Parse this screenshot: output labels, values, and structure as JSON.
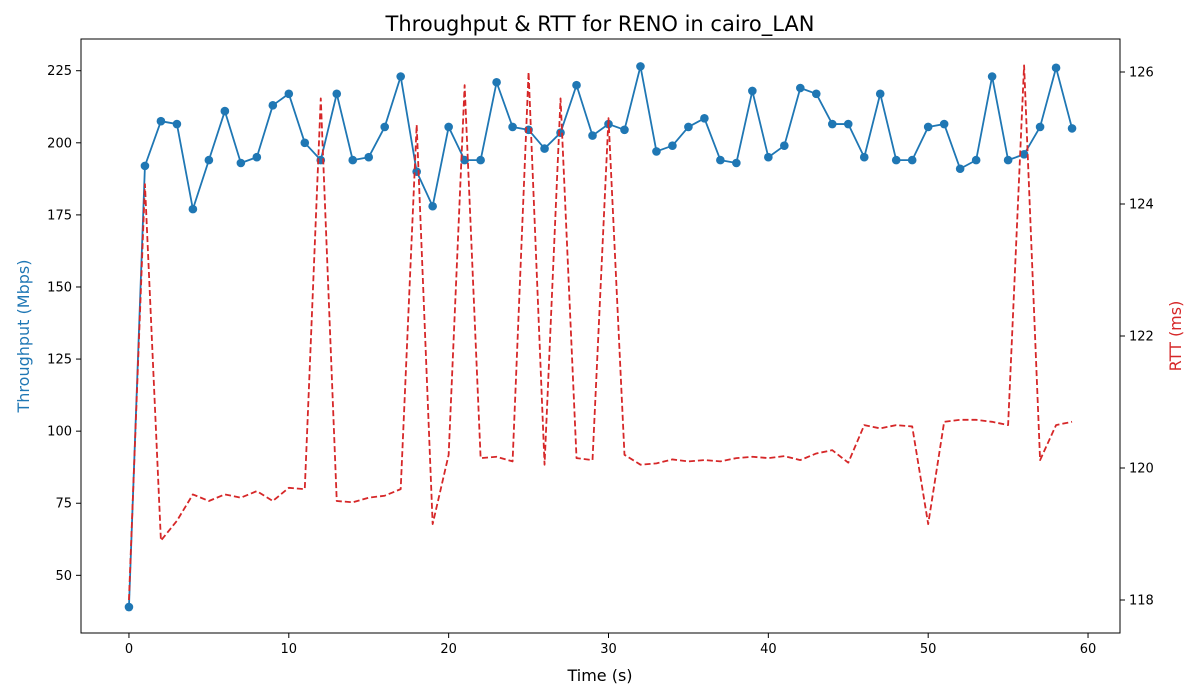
{
  "chart_data": {
    "type": "line",
    "title": "Throughput & RTT for RENO in cairo_LAN",
    "xlabel": "Time (s)",
    "ylabel_left": "Throughput (Mbps)",
    "ylabel_right": "RTT (ms)",
    "xlim": [
      -3,
      62
    ],
    "ylim_left": [
      30,
      236
    ],
    "ylim_right": [
      117.5,
      126.5
    ],
    "x_ticks": [
      0,
      10,
      20,
      30,
      40,
      50,
      60
    ],
    "y_ticks_left": [
      50,
      75,
      100,
      125,
      150,
      175,
      200,
      225
    ],
    "y_ticks_right": [
      118,
      120,
      122,
      124,
      126
    ],
    "grid": false,
    "colors": {
      "throughput": "#1f77b4",
      "rtt": "#d62728"
    },
    "series": [
      {
        "axis": "left",
        "style": "solid-markers",
        "color": "#1f77b4",
        "x": [
          0,
          1,
          2,
          3,
          4,
          5,
          6,
          7,
          8,
          9,
          10,
          11,
          12,
          13,
          14,
          15,
          16,
          17,
          18,
          19,
          20,
          21,
          22,
          23,
          24,
          25,
          26,
          27,
          28,
          29,
          30,
          31,
          32,
          33,
          34,
          35,
          36,
          37,
          38,
          39,
          40,
          41,
          42,
          43,
          44,
          45,
          46,
          47,
          48,
          49,
          50,
          51,
          52,
          53,
          54,
          55,
          56,
          57,
          58,
          59
        ],
        "values": [
          39,
          192,
          207.5,
          206.5,
          177,
          194,
          211,
          193,
          195,
          213,
          217,
          200,
          194,
          217,
          194,
          195,
          205.5,
          223,
          190,
          178,
          205.5,
          194,
          194,
          221,
          205.5,
          204.5,
          198,
          203.5,
          220,
          202.5,
          206.5,
          204.5,
          226.5,
          197,
          199,
          205.5,
          208.5,
          194,
          193,
          218,
          195,
          199,
          219,
          217,
          206.5,
          206.5,
          195,
          217,
          194,
          194,
          205.5,
          206.5,
          191,
          194,
          223,
          194,
          196,
          205.5,
          226,
          205
        ]
      },
      {
        "axis": "right",
        "style": "dashed",
        "color": "#d62728",
        "x": [
          0,
          1,
          2,
          3,
          4,
          5,
          6,
          7,
          8,
          9,
          10,
          11,
          12,
          13,
          14,
          15,
          16,
          17,
          18,
          19,
          20,
          21,
          22,
          23,
          24,
          25,
          26,
          27,
          28,
          29,
          30,
          31,
          32,
          33,
          34,
          35,
          36,
          37,
          38,
          39,
          40,
          41,
          42,
          43,
          44,
          45,
          46,
          47,
          48,
          49,
          50,
          51,
          52,
          53,
          54,
          55,
          56,
          57,
          58,
          59
        ],
        "values": [
          118,
          124.3,
          118.9,
          119.2,
          119.6,
          119.5,
          119.6,
          119.55,
          119.65,
          119.5,
          119.7,
          119.68,
          125.6,
          119.5,
          119.48,
          119.55,
          119.58,
          119.68,
          125.2,
          119.15,
          120.2,
          125.8,
          120.15,
          120.17,
          120.1,
          126,
          120.05,
          125.6,
          120.15,
          120.12,
          125.3,
          120.2,
          120.05,
          120.07,
          120.13,
          120.1,
          120.12,
          120.1,
          120.15,
          120.17,
          120.15,
          120.18,
          120.12,
          120.22,
          120.27,
          120.08,
          120.65,
          120.6,
          120.65,
          120.63,
          119.15,
          120.7,
          120.73,
          120.73,
          120.7,
          120.65,
          126.1,
          120.12,
          120.65,
          120.7
        ]
      }
    ]
  }
}
